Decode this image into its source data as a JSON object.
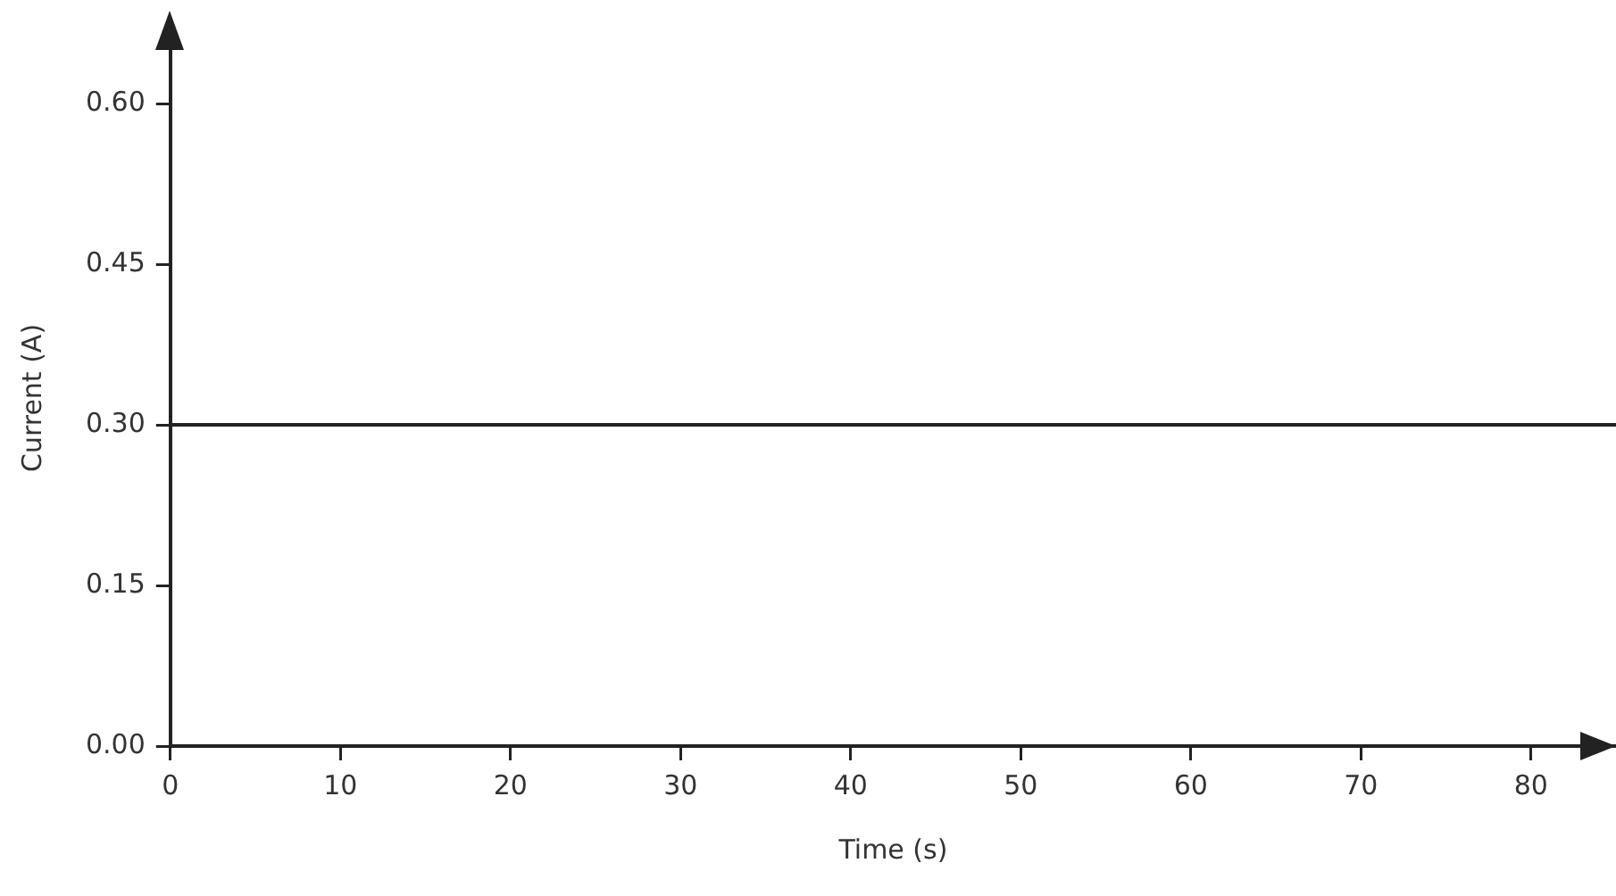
{
  "chart_data": {
    "type": "line",
    "xlabel": "Time (s)",
    "ylabel": "Current (A)",
    "x": [
      0,
      85
    ],
    "series": [
      {
        "color": "#222222",
        "values": [
          0.3,
          0.3
        ]
      }
    ],
    "xlim": [
      0,
      85
    ],
    "xticks": [
      0,
      10,
      20,
      30,
      40,
      50,
      60,
      70,
      80
    ],
    "ylim": [
      0,
      0.65
    ],
    "yticks": [
      {
        "value": 0,
        "label": "0.00"
      },
      {
        "value": 0.15,
        "label": "0.15"
      },
      {
        "value": 0.3,
        "label": "0.30"
      },
      {
        "value": 0.45,
        "label": "0.45"
      },
      {
        "value": 0.6,
        "label": "0.60"
      }
    ],
    "grid": false,
    "legend": false,
    "marker": "none",
    "line_style": "solid"
  }
}
